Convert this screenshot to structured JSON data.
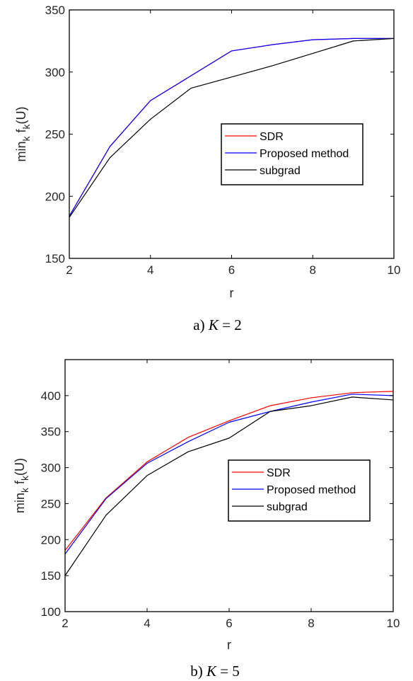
{
  "chart_data": [
    {
      "type": "line",
      "caption": {
        "prefix": "a)",
        "variable": "K",
        "equals": "=",
        "value": "2"
      },
      "xlabel": "r",
      "ylabel": {
        "base": "min",
        "sub1": "k",
        "mid": " f",
        "sub2": "k",
        "tail": "(U)"
      },
      "xlim": [
        2,
        10
      ],
      "ylim": [
        150,
        350
      ],
      "xticks": [
        2,
        4,
        6,
        8,
        10
      ],
      "yticks": [
        150,
        200,
        250,
        300,
        350
      ],
      "grid": false,
      "legend_position": "center-right",
      "x": [
        2,
        3,
        4,
        5,
        6,
        7,
        8,
        9,
        10
      ],
      "series": [
        {
          "name": "SDR",
          "color": "#ff0000",
          "values": [
            184,
            240,
            277,
            297,
            317,
            322,
            326,
            327,
            327
          ]
        },
        {
          "name": "Proposed method",
          "color": "#0000ff",
          "values": [
            184,
            240,
            277,
            297,
            317,
            322,
            326,
            327,
            327
          ]
        },
        {
          "name": "subgrad",
          "color": "#000000",
          "values": [
            183,
            231,
            262,
            287,
            296,
            305,
            315,
            325,
            327
          ]
        }
      ]
    },
    {
      "type": "line",
      "caption": {
        "prefix": "b)",
        "variable": "K",
        "equals": "=",
        "value": "5"
      },
      "xlabel": "r",
      "ylabel": {
        "base": "min",
        "sub1": "k",
        "mid": " f",
        "sub2": "k",
        "tail": "(U)"
      },
      "xlim": [
        2,
        10
      ],
      "ylim": [
        100,
        450
      ],
      "xticks": [
        2,
        4,
        6,
        8,
        10
      ],
      "yticks": [
        100,
        150,
        200,
        250,
        300,
        350,
        400
      ],
      "grid": false,
      "legend_position": "center-right",
      "x": [
        2,
        3,
        4,
        5,
        6,
        7,
        8,
        9,
        10
      ],
      "series": [
        {
          "name": "SDR",
          "color": "#ff0000",
          "values": [
            185,
            258,
            308,
            342,
            365,
            386,
            397,
            404,
            406
          ]
        },
        {
          "name": "Proposed method",
          "color": "#0000ff",
          "values": [
            180,
            257,
            306,
            336,
            363,
            378,
            391,
            402,
            400
          ]
        },
        {
          "name": "subgrad",
          "color": "#000000",
          "values": [
            150,
            234,
            289,
            322,
            341,
            378,
            386,
            398,
            394
          ]
        }
      ]
    }
  ]
}
